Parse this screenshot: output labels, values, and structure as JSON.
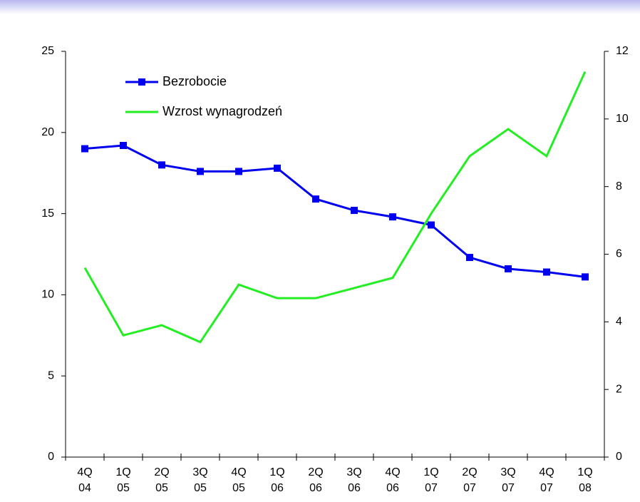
{
  "chart_data": {
    "type": "line",
    "categories": [
      [
        "4Q",
        "04"
      ],
      [
        "1Q",
        "05"
      ],
      [
        "2Q",
        "05"
      ],
      [
        "3Q",
        "05"
      ],
      [
        "4Q",
        "05"
      ],
      [
        "1Q",
        "06"
      ],
      [
        "2Q",
        "06"
      ],
      [
        "3Q",
        "06"
      ],
      [
        "4Q",
        "06"
      ],
      [
        "1Q",
        "07"
      ],
      [
        "2Q",
        "07"
      ],
      [
        "3Q",
        "07"
      ],
      [
        "4Q",
        "07"
      ],
      [
        "1Q",
        "08"
      ]
    ],
    "series": [
      {
        "name": "Bezrobocie",
        "color": "#0000ee",
        "marker": "square",
        "axis": "y",
        "values": [
          19.0,
          19.2,
          18.0,
          17.6,
          17.6,
          17.8,
          15.9,
          15.2,
          14.8,
          14.3,
          12.3,
          11.6,
          11.4,
          11.1
        ]
      },
      {
        "name": "Wzrost wynagrodzeń",
        "color": "#22ee22",
        "axis": "y2",
        "values": [
          5.6,
          3.6,
          3.9,
          3.4,
          5.1,
          4.7,
          4.7,
          5.0,
          5.3,
          7.2,
          8.9,
          9.7,
          8.9,
          11.4
        ]
      }
    ],
    "ylim": [
      0,
      25
    ],
    "yticks": [
      0,
      5,
      10,
      15,
      20,
      25
    ],
    "y2lim": [
      0,
      12
    ],
    "y2ticks": [
      0,
      2,
      4,
      6,
      8,
      10,
      12
    ],
    "legend": "upper left",
    "grid": false
  }
}
